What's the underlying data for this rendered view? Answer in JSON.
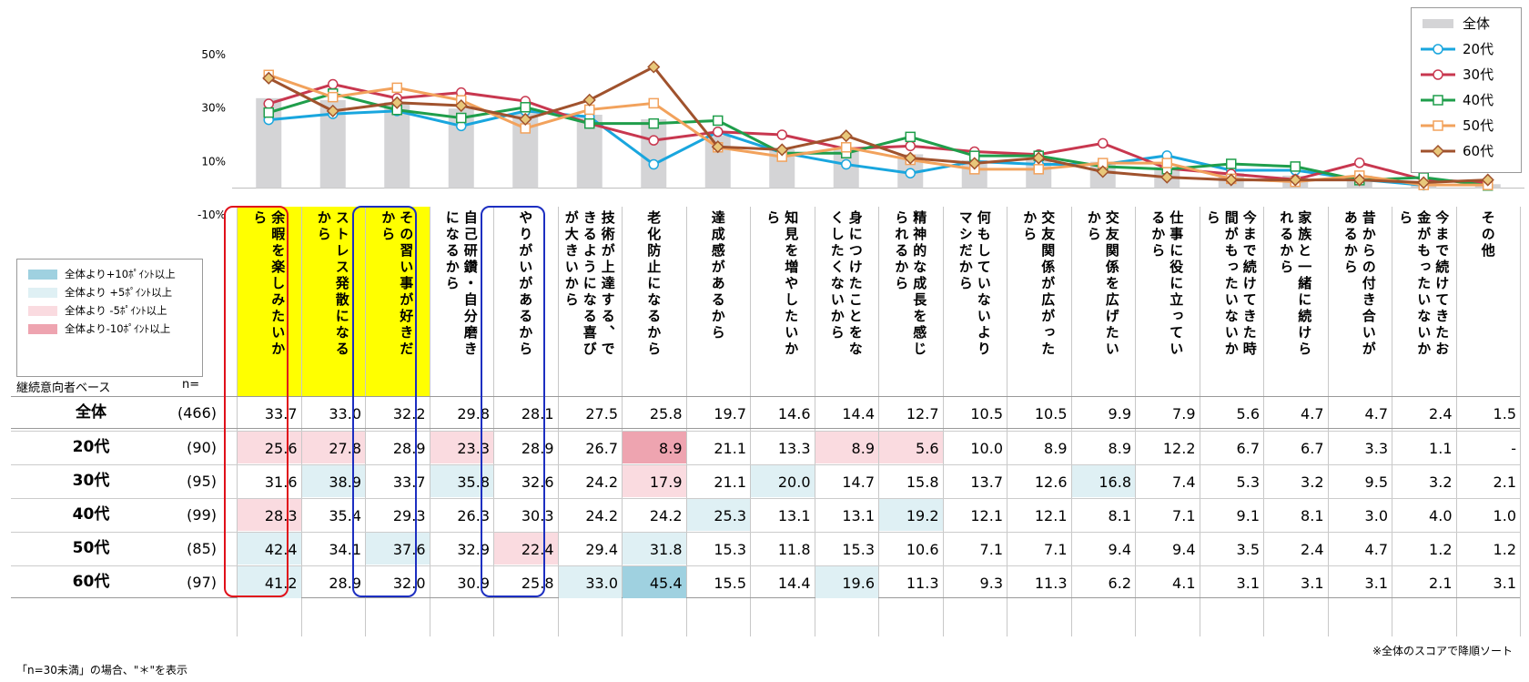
{
  "chart_data": {
    "type": "bar+line",
    "categories": [
      "余暇を楽しみたいから",
      "ストレス発散になるから",
      "その習い事が好きだから",
      "自己研鑽・自分磨きになるから",
      "やりがいがあるから",
      "技術が上達する、できるようになる喜びが大きいから",
      "老化防止になるから",
      "達成感があるから",
      "知見を増やしたいから",
      "身につけたことをなくしたくないから",
      "精神的な成長を感じられるから",
      "何もしていないよりマシだから",
      "交友関係が広がったから",
      "交友関係を広げたいから",
      "仕事に役に立っているから",
      "今まで続けてきた時間がもったいないから",
      "家族と一緒に続けられるから",
      "昔からの付き合いがあるから",
      "今まで続けてきたお金がもったいないから",
      "その他"
    ],
    "y_ticks": [
      "50%",
      "30%",
      "10%",
      "-10%"
    ],
    "ylim": [
      -10,
      50
    ],
    "series": [
      {
        "name": "全体",
        "type": "bar",
        "n": "(466)",
        "color": "#d4d4d6",
        "values": [
          "33.7",
          "33.0",
          "32.2",
          "29.8",
          "28.1",
          "27.5",
          "25.8",
          "19.7",
          "14.6",
          "14.4",
          "12.7",
          "10.5",
          "10.5",
          "9.9",
          "7.9",
          "5.6",
          "4.7",
          "4.7",
          "2.4",
          "1.5"
        ]
      },
      {
        "name": "20代",
        "type": "line",
        "n": "(90)",
        "color": "#19a6de",
        "marker": "circle",
        "values": [
          "25.6",
          "27.8",
          "28.9",
          "23.3",
          "28.9",
          "26.7",
          "8.9",
          "21.1",
          "13.3",
          "8.9",
          "5.6",
          "10.0",
          "8.9",
          "8.9",
          "12.2",
          "6.7",
          "6.7",
          "3.3",
          "1.1",
          "-"
        ]
      },
      {
        "name": "30代",
        "type": "line",
        "n": "(95)",
        "color": "#c8374f",
        "marker": "circle",
        "values": [
          "31.6",
          "38.9",
          "33.7",
          "35.8",
          "32.6",
          "24.2",
          "17.9",
          "21.1",
          "20.0",
          "14.7",
          "15.8",
          "13.7",
          "12.6",
          "16.8",
          "7.4",
          "5.3",
          "3.2",
          "9.5",
          "3.2",
          "2.1"
        ]
      },
      {
        "name": "40代",
        "type": "line",
        "n": "(99)",
        "color": "#1f9e4b",
        "marker": "square",
        "values": [
          "28.3",
          "35.4",
          "29.3",
          "26.3",
          "30.3",
          "24.2",
          "24.2",
          "25.3",
          "13.1",
          "13.1",
          "19.2",
          "12.1",
          "12.1",
          "8.1",
          "7.1",
          "9.1",
          "8.1",
          "3.0",
          "4.0",
          "1.0"
        ]
      },
      {
        "name": "50代",
        "type": "line",
        "n": "(85)",
        "color": "#f2a25c",
        "marker": "square",
        "values": [
          "42.4",
          "34.1",
          "37.6",
          "32.9",
          "22.4",
          "29.4",
          "31.8",
          "15.3",
          "11.8",
          "15.3",
          "10.6",
          "7.1",
          "7.1",
          "9.4",
          "9.4",
          "3.5",
          "2.4",
          "4.7",
          "1.2",
          "1.2"
        ]
      },
      {
        "name": "60代",
        "type": "line",
        "n": "(97)",
        "color": "#a0522d",
        "marker": "diamond",
        "values": [
          "41.2",
          "28.9",
          "32.0",
          "30.9",
          "25.8",
          "33.0",
          "45.4",
          "15.5",
          "14.4",
          "19.6",
          "11.3",
          "9.3",
          "11.3",
          "6.2",
          "4.1",
          "3.1",
          "3.1",
          "3.1",
          "2.1",
          "3.1"
        ]
      }
    ],
    "cell_highlight": {
      "20代": [
        "pink",
        "pink",
        "",
        "pink",
        "",
        "",
        "red",
        "",
        "",
        "pink",
        "pink",
        "",
        "",
        "",
        "",
        "",
        "",
        "",
        "",
        ""
      ],
      "30代": [
        "",
        "lightblue",
        "",
        "lightblue",
        "",
        "",
        "pink",
        "",
        "lightblue",
        "",
        "",
        "",
        "",
        "lightblue",
        "",
        "",
        "",
        "",
        "",
        ""
      ],
      "40代": [
        "pink",
        "",
        "",
        "",
        "",
        "",
        "",
        "lightblue",
        "",
        "",
        "lightblue",
        "",
        "",
        "",
        "",
        "",
        "",
        "",
        "",
        ""
      ],
      "50代": [
        "lightblue",
        "",
        "lightblue",
        "",
        "pink",
        "",
        "lightblue",
        "",
        "",
        "",
        "",
        "",
        "",
        "",
        "",
        "",
        "",
        "",
        "",
        ""
      ],
      "60代": [
        "lightblue",
        "",
        "",
        "",
        "",
        "lightblue",
        "blue",
        "",
        "",
        "lightblue",
        "",
        "",
        "",
        "",
        "",
        "",
        "",
        "",
        "",
        ""
      ]
    },
    "highlight_colors": {
      "blue": "#9fd1e0",
      "lightblue": "#dff0f4",
      "pink": "#fadbe0",
      "red": "#eea4b0"
    },
    "boxed_columns": [
      {
        "index": 0,
        "color": "#e0101a"
      },
      {
        "index": 2,
        "color": "#1d2fc1"
      },
      {
        "index": 4,
        "color": "#1d2fc1"
      }
    ],
    "yellow_columns": [
      0,
      1,
      2
    ],
    "legend_position": "top-right"
  },
  "table": {
    "base_label": "継続意向者ベース",
    "n_label": "n="
  },
  "highlight_legend": [
    {
      "label": "全体より+10ﾎﾟｲﾝﾄ以上",
      "color": "#9fd1e0"
    },
    {
      "label": "全体より +5ﾎﾟｲﾝﾄ以上",
      "color": "#dff0f4"
    },
    {
      "label": "全体より -5ﾎﾟｲﾝﾄ以上",
      "color": "#fadbe0"
    },
    {
      "label": "全体より-10ﾎﾟｲﾝﾄ以上",
      "color": "#eea4b0"
    }
  ],
  "notes": {
    "sort_note": "※全体のスコアで降順ソート",
    "n_note": "「n=30未満」の場合、\"＊\"を表示"
  }
}
